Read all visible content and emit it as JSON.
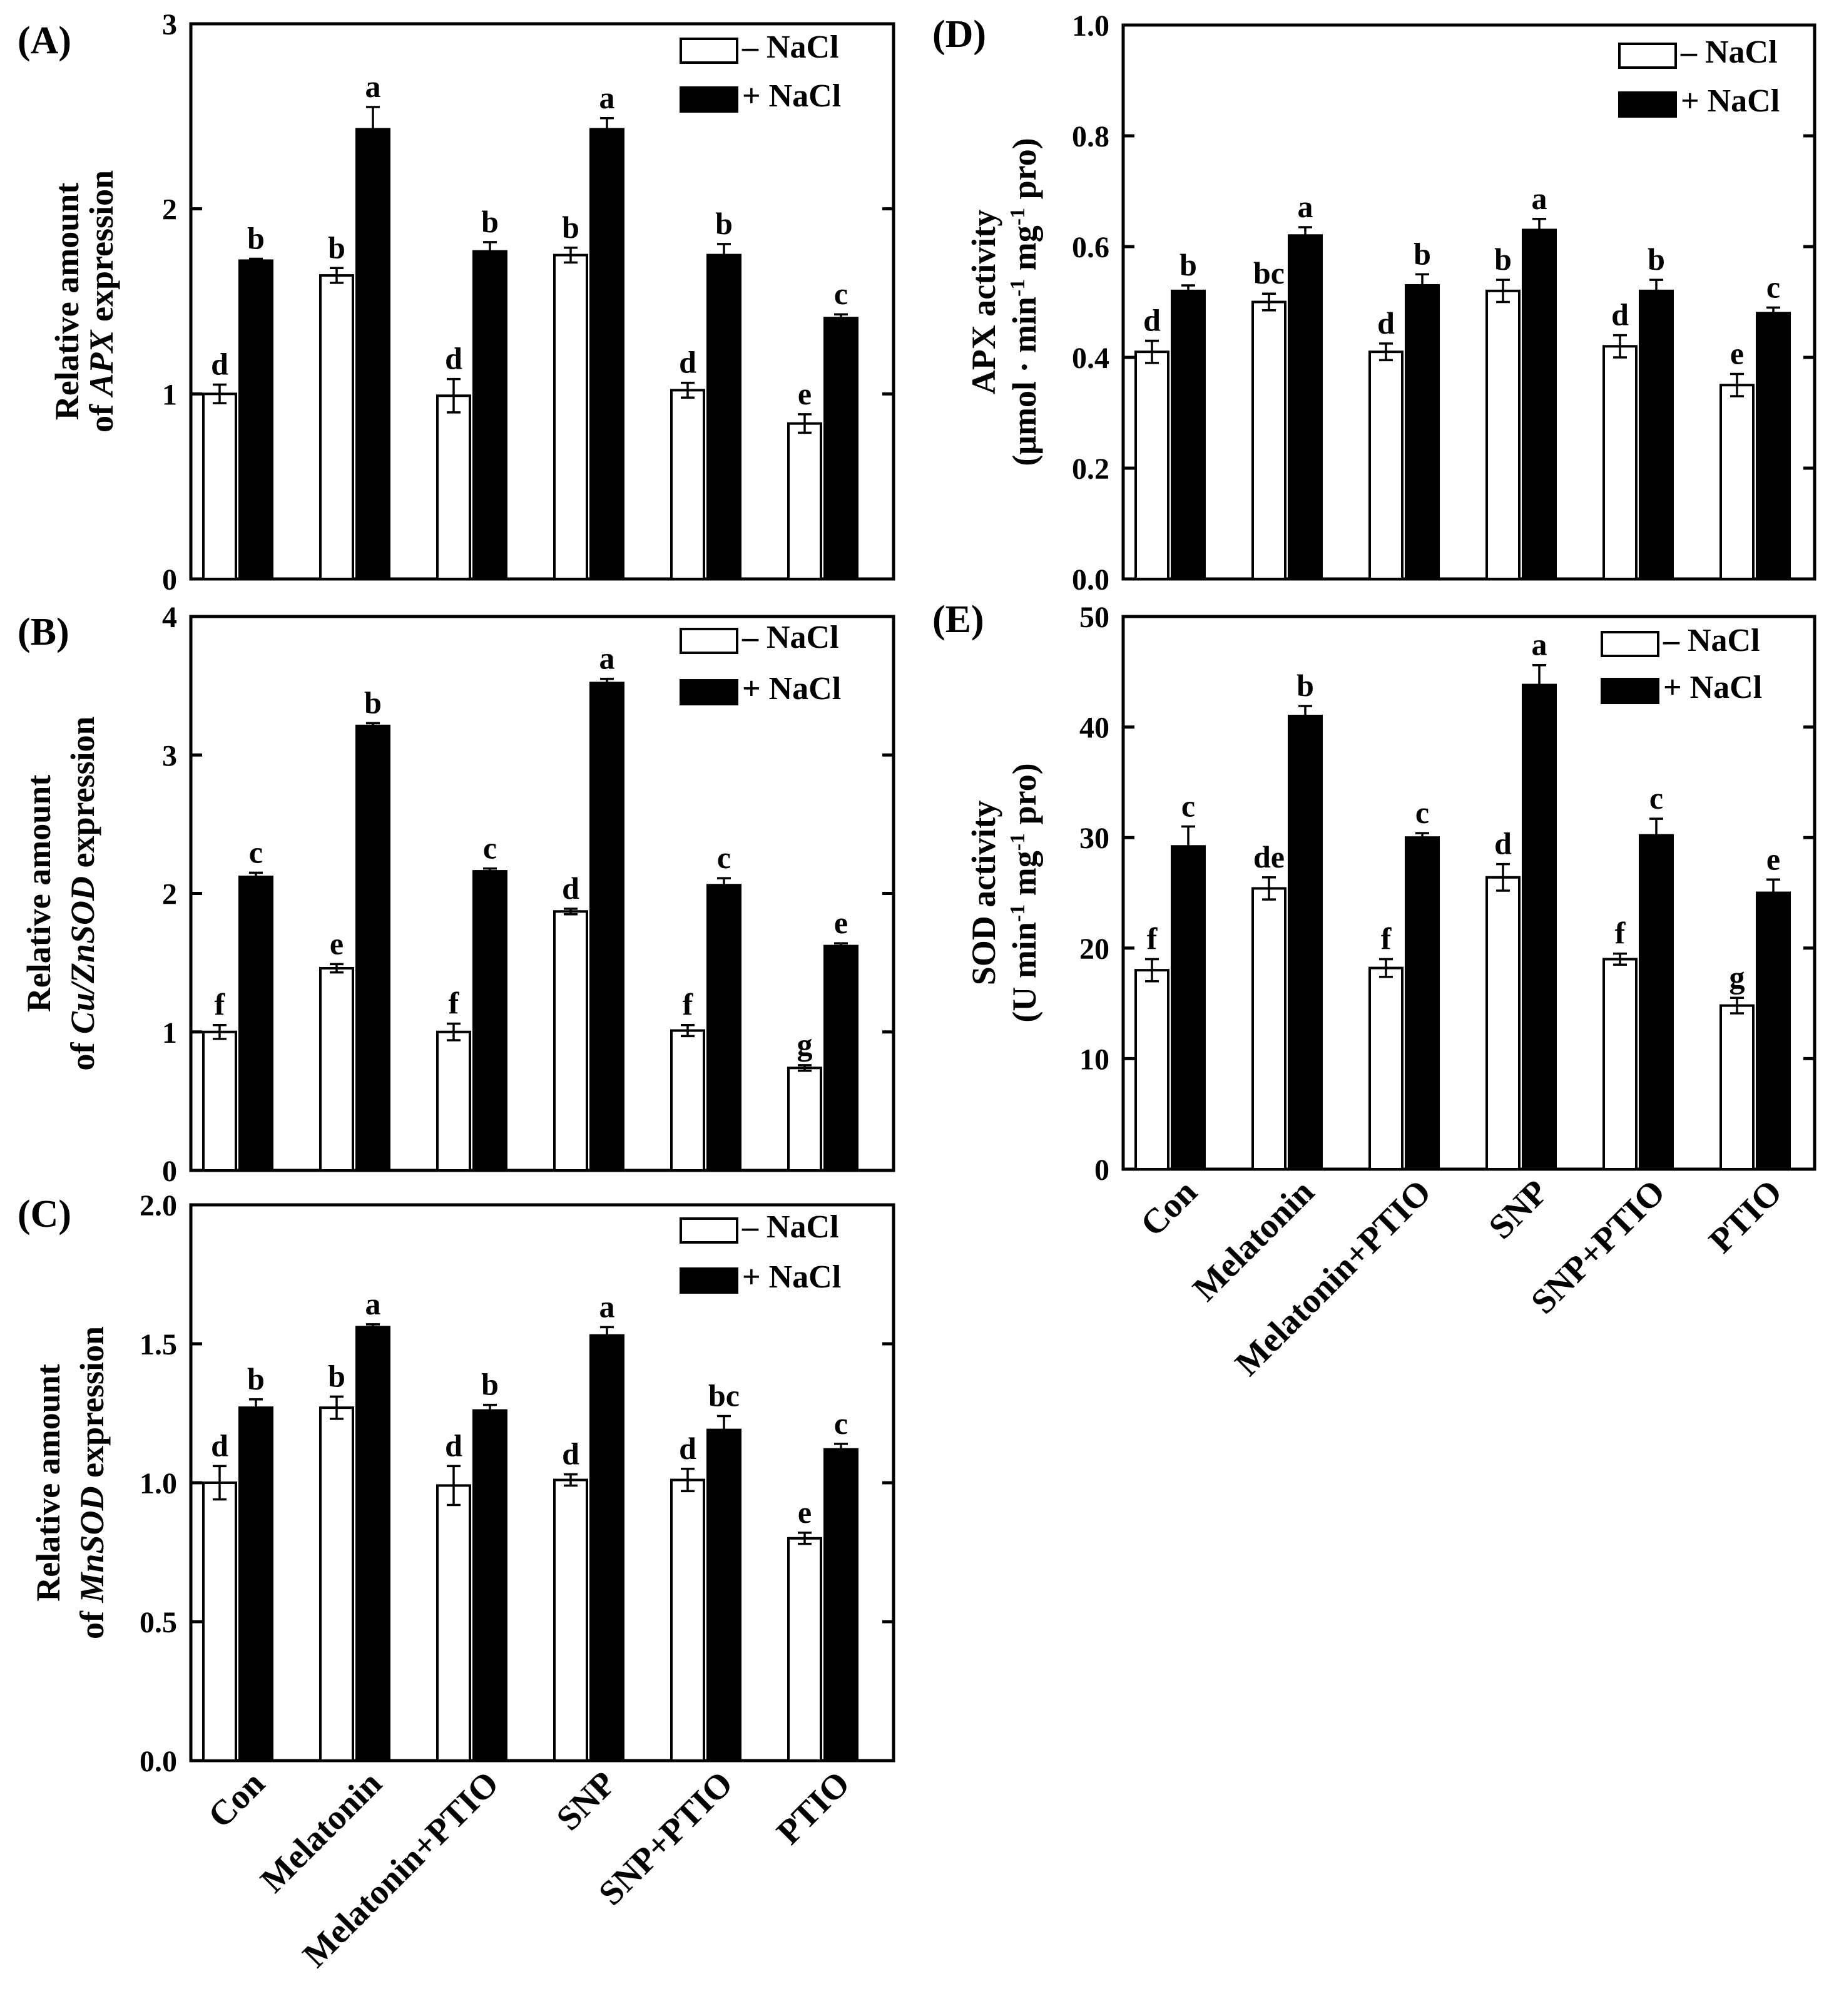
{
  "legend": {
    "minus_label": "– NaCl",
    "plus_label": "+ NaCl"
  },
  "colors": {
    "minus_nacl": "#ffffff",
    "plus_nacl": "#000000",
    "axis": "#000000"
  },
  "categories": [
    "Con",
    "Melatonin",
    "Melatonin+PTIO",
    "SNP",
    "SNP+PTIO",
    "PTIO"
  ],
  "chart_data": [
    {
      "id": "A",
      "type": "bar",
      "panel_label": "(A)",
      "ylabel_lines": [
        [
          {
            "t": "Relative amount"
          }
        ],
        [
          {
            "t": "of "
          },
          {
            "t": "APX",
            "i": true
          },
          {
            "t": " expression"
          }
        ]
      ],
      "ylim": [
        0,
        3
      ],
      "yticks": [
        0,
        1,
        2,
        3
      ],
      "ytick_labels": [
        "0",
        "1",
        "2",
        "3"
      ],
      "categories": [
        "Con",
        "Melatonin",
        "Melatonin+PTIO",
        "SNP",
        "SNP+PTIO",
        "PTIO"
      ],
      "series": [
        {
          "name": "– NaCl",
          "values": [
            1.0,
            1.64,
            0.99,
            1.75,
            1.02,
            0.84
          ],
          "errors": [
            0.05,
            0.04,
            0.09,
            0.04,
            0.04,
            0.05
          ],
          "letters": [
            "d",
            "b",
            "d",
            "b",
            "d",
            "e"
          ]
        },
        {
          "name": "+ NaCl",
          "values": [
            1.72,
            2.43,
            1.77,
            2.43,
            1.75,
            1.41
          ],
          "errors": [
            0.01,
            0.12,
            0.05,
            0.06,
            0.06,
            0.02
          ],
          "letters": [
            "b",
            "a",
            "b",
            "a",
            "b",
            "c"
          ]
        }
      ]
    },
    {
      "id": "B",
      "type": "bar",
      "panel_label": "(B)",
      "ylabel_lines": [
        [
          {
            "t": "Relative amount"
          }
        ],
        [
          {
            "t": "of "
          },
          {
            "t": "Cu/ZnSOD",
            "i": true
          },
          {
            "t": " expression"
          }
        ]
      ],
      "ylim": [
        0,
        4
      ],
      "yticks": [
        0,
        1,
        2,
        3,
        4
      ],
      "ytick_labels": [
        "0",
        "1",
        "2",
        "3",
        "4"
      ],
      "categories": [
        "Con",
        "Melatonin",
        "Melatonin+PTIO",
        "SNP",
        "SNP+PTIO",
        "PTIO"
      ],
      "series": [
        {
          "name": "– NaCl",
          "values": [
            1.0,
            1.46,
            1.0,
            1.87,
            1.01,
            0.74
          ],
          "errors": [
            0.05,
            0.03,
            0.06,
            0.02,
            0.04,
            0.02
          ],
          "letters": [
            "f",
            "e",
            "f",
            "d",
            "f",
            "g"
          ]
        },
        {
          "name": "+ NaCl",
          "values": [
            2.12,
            3.21,
            2.16,
            3.52,
            2.06,
            1.62
          ],
          "errors": [
            0.03,
            0.02,
            0.02,
            0.03,
            0.05,
            0.02
          ],
          "letters": [
            "c",
            "b",
            "c",
            "a",
            "c",
            "e"
          ]
        }
      ]
    },
    {
      "id": "C",
      "type": "bar",
      "panel_label": "(C)",
      "ylabel_lines": [
        [
          {
            "t": "Relative amount"
          }
        ],
        [
          {
            "t": "of "
          },
          {
            "t": "MnSOD",
            "i": true
          },
          {
            "t": " expression"
          }
        ]
      ],
      "ylim": [
        0,
        2.0
      ],
      "yticks": [
        0,
        0.5,
        1.0,
        1.5,
        2.0
      ],
      "ytick_labels": [
        "0.0",
        "0.5",
        "1.0",
        "1.5",
        "2.0"
      ],
      "categories": [
        "Con",
        "Melatonin",
        "Melatonin+PTIO",
        "SNP",
        "SNP+PTIO",
        "PTIO"
      ],
      "series": [
        {
          "name": "– NaCl",
          "values": [
            1.0,
            1.27,
            0.99,
            1.01,
            1.01,
            0.8
          ],
          "errors": [
            0.06,
            0.04,
            0.07,
            0.02,
            0.04,
            0.02
          ],
          "letters": [
            "d",
            "b",
            "d",
            "d",
            "d",
            "e"
          ]
        },
        {
          "name": "+ NaCl",
          "values": [
            1.27,
            1.56,
            1.26,
            1.53,
            1.19,
            1.12
          ],
          "errors": [
            0.03,
            0.01,
            0.02,
            0.03,
            0.05,
            0.02
          ],
          "letters": [
            "b",
            "a",
            "b",
            "a",
            "bc",
            "c"
          ]
        }
      ]
    },
    {
      "id": "D",
      "type": "bar",
      "panel_label": "(D)",
      "ylabel_lines": [
        [
          {
            "t": "APX activity"
          }
        ],
        [
          {
            "t": "(μmol · min"
          },
          {
            "t": "-1",
            "sup": true
          },
          {
            "t": " mg"
          },
          {
            "t": "-1",
            "sup": true
          },
          {
            "t": " pro)"
          }
        ]
      ],
      "ylim": [
        0,
        1.0
      ],
      "yticks": [
        0,
        0.2,
        0.4,
        0.6,
        0.8,
        1.0
      ],
      "ytick_labels": [
        "0.0",
        "0.2",
        "0.4",
        "0.6",
        "0.8",
        "1.0"
      ],
      "categories": [
        "Con",
        "Melatonin",
        "Melatonin+PTIO",
        "SNP",
        "SNP+PTIO",
        "PTIO"
      ],
      "series": [
        {
          "name": "– NaCl",
          "values": [
            0.41,
            0.5,
            0.41,
            0.52,
            0.42,
            0.35
          ],
          "errors": [
            0.02,
            0.015,
            0.015,
            0.02,
            0.02,
            0.02
          ],
          "letters": [
            "d",
            "bc",
            "d",
            "b",
            "d",
            "e"
          ]
        },
        {
          "name": "+ NaCl",
          "values": [
            0.52,
            0.62,
            0.53,
            0.63,
            0.52,
            0.48
          ],
          "errors": [
            0.01,
            0.015,
            0.02,
            0.02,
            0.02,
            0.01
          ],
          "letters": [
            "b",
            "a",
            "b",
            "a",
            "b",
            "c"
          ]
        }
      ]
    },
    {
      "id": "E",
      "type": "bar",
      "panel_label": "(E)",
      "ylabel_lines": [
        [
          {
            "t": "SOD activity"
          }
        ],
        [
          {
            "t": "(U min"
          },
          {
            "t": "-1",
            "sup": true
          },
          {
            "t": " mg"
          },
          {
            "t": "-1",
            "sup": true
          },
          {
            "t": " pro)"
          }
        ]
      ],
      "ylim": [
        0,
        50
      ],
      "yticks": [
        0,
        10,
        20,
        30,
        40,
        50
      ],
      "ytick_labels": [
        "0",
        "10",
        "20",
        "30",
        "40",
        "50"
      ],
      "categories": [
        "Con",
        "Melatonin",
        "Melatonin+PTIO",
        "SNP",
        "SNP+PTIO",
        "PTIO"
      ],
      "series": [
        {
          "name": "– NaCl",
          "values": [
            18.0,
            25.4,
            18.2,
            26.4,
            19.0,
            14.8
          ],
          "errors": [
            1.0,
            1.0,
            0.8,
            1.2,
            0.5,
            0.7
          ],
          "letters": [
            "f",
            "de",
            "f",
            "d",
            "f",
            "g"
          ]
        },
        {
          "name": "+ NaCl",
          "values": [
            29.2,
            41.0,
            30.0,
            43.8,
            30.2,
            25.0
          ],
          "errors": [
            1.8,
            0.9,
            0.4,
            1.8,
            1.5,
            1.2
          ],
          "letters": [
            "c",
            "b",
            "c",
            "a",
            "c",
            "e"
          ]
        }
      ]
    }
  ]
}
